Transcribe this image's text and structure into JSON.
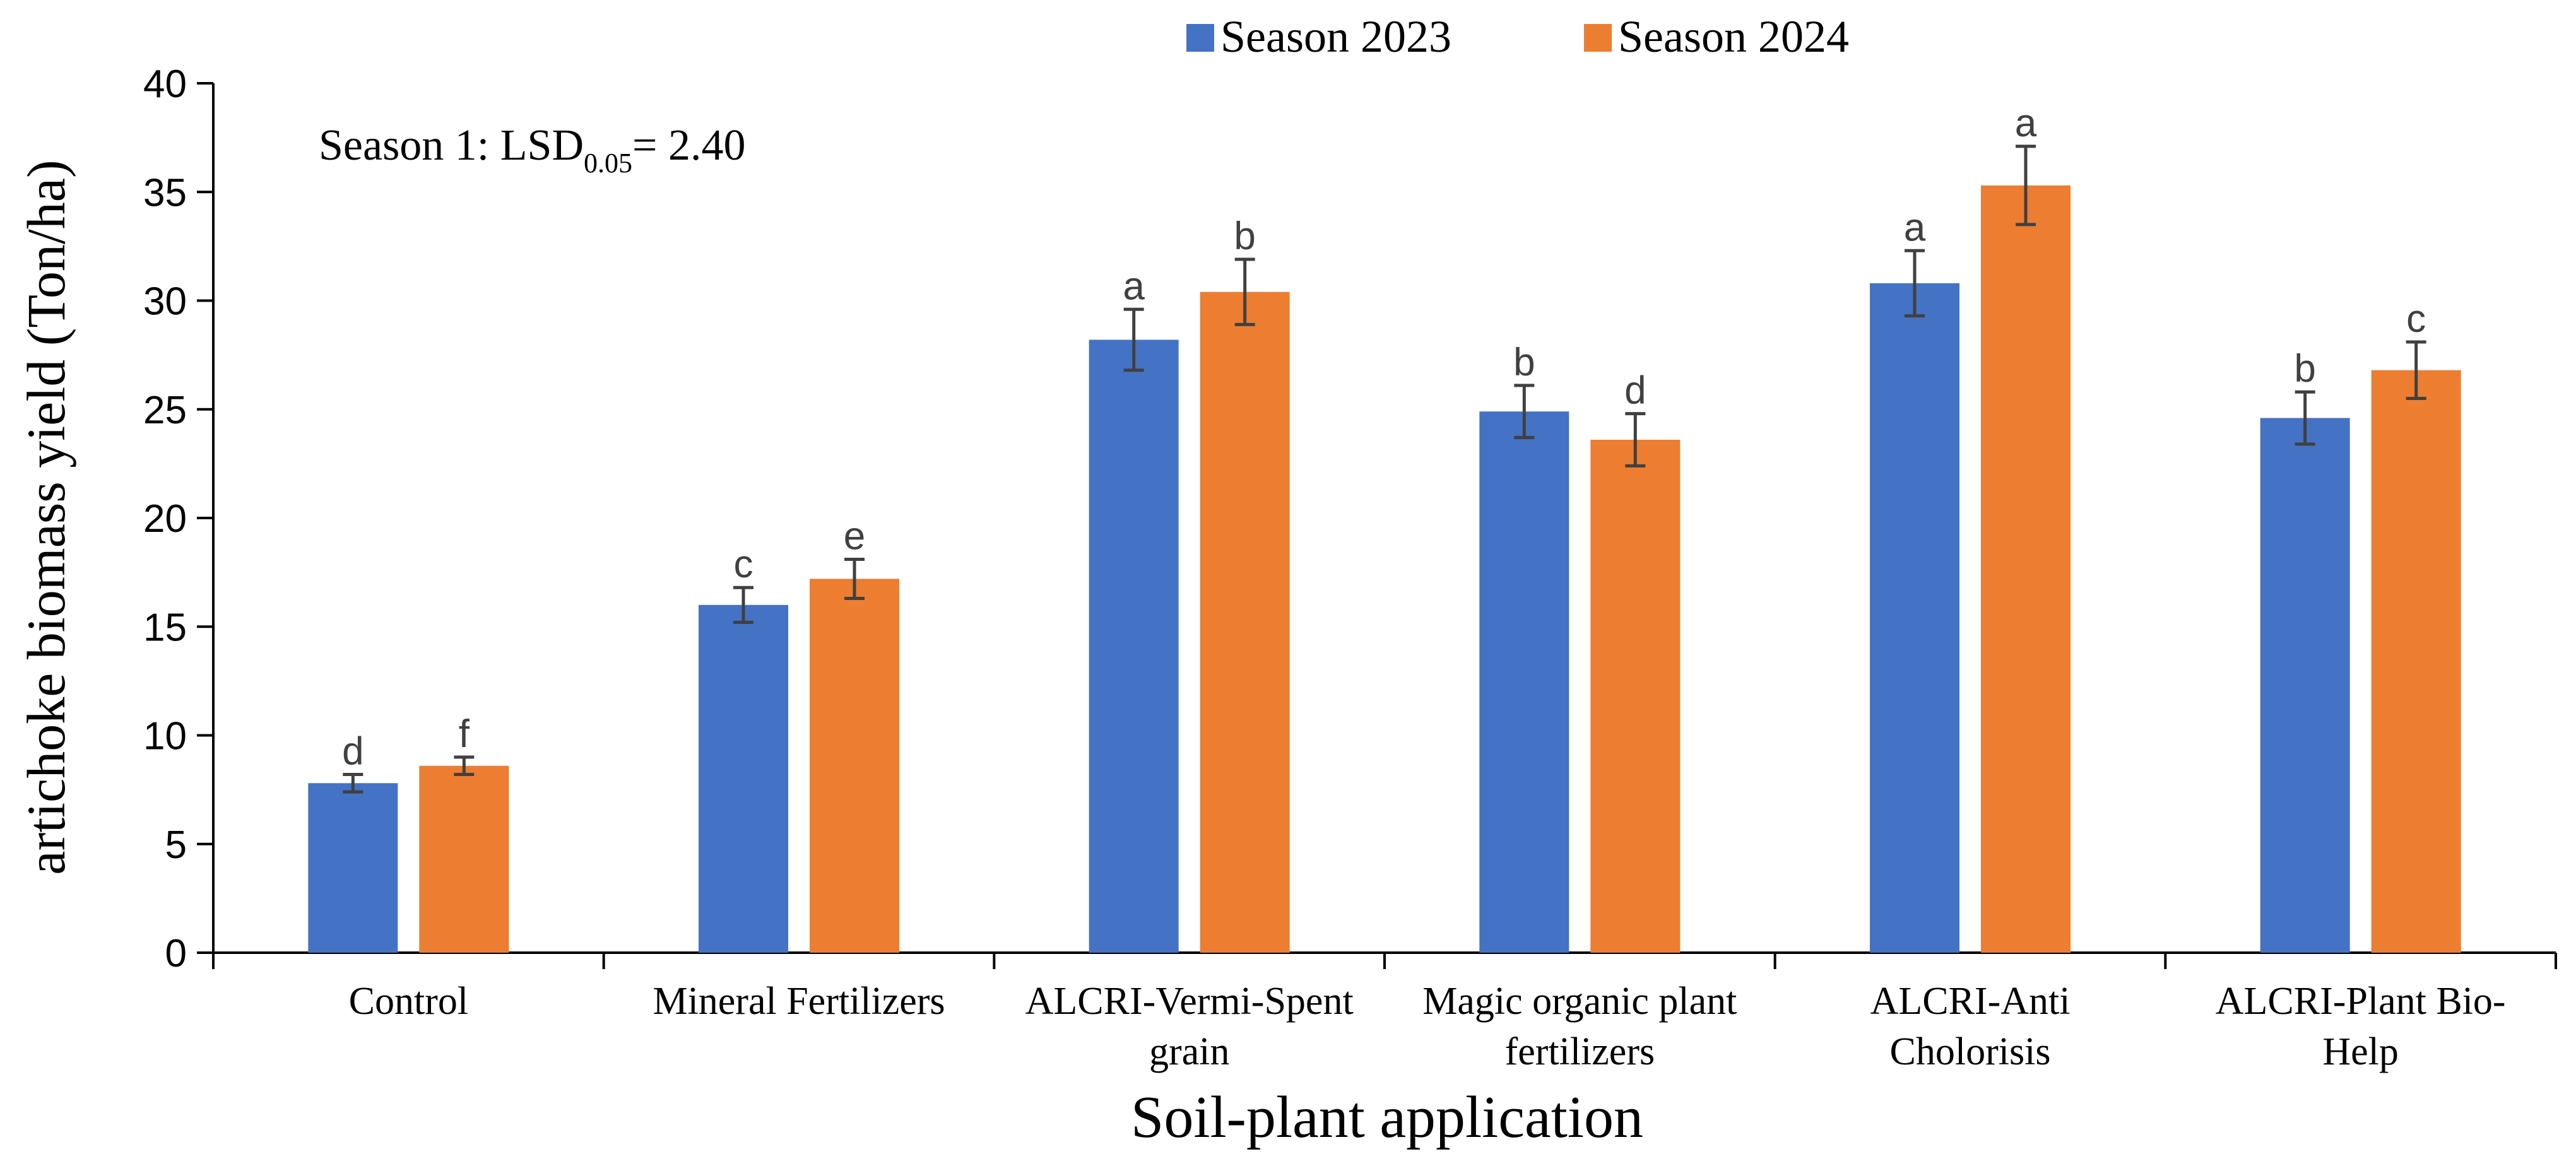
{
  "chart_data": {
    "type": "bar",
    "title": "",
    "xlabel": "Soil-plant application",
    "ylabel": "artichoke biomass yield (Ton/ha)",
    "ylim": [
      0,
      40
    ],
    "yticks": [
      0,
      5,
      10,
      15,
      20,
      25,
      30,
      35,
      40
    ],
    "grid": false,
    "legend_position": "top-center",
    "annotation": {
      "prefix": "Season 1: LSD",
      "subscript": "0.05",
      "suffix": "= 2.40"
    },
    "categories": [
      [
        "Control"
      ],
      [
        "Mineral Fertilizers"
      ],
      [
        "ALCRI-Vermi-Spent",
        "grain"
      ],
      [
        "Magic organic plant",
        "fertilizers"
      ],
      [
        "ALCRI-Anti",
        "Cholorisis"
      ],
      [
        "ALCRI-Plant Bio-",
        "Help"
      ]
    ],
    "series": [
      {
        "name": "Season 2023",
        "color": "#4472C4",
        "values": [
          7.8,
          16.0,
          28.2,
          24.9,
          30.8,
          24.6
        ],
        "errors": [
          0.4,
          0.8,
          1.4,
          1.2,
          1.5,
          1.2
        ],
        "letters": [
          "d",
          "c",
          "a",
          "b",
          "a",
          "b"
        ]
      },
      {
        "name": "Season 2024",
        "color": "#ED7D31",
        "values": [
          8.6,
          17.2,
          30.4,
          23.6,
          35.3,
          26.8
        ],
        "errors": [
          0.4,
          0.9,
          1.5,
          1.2,
          1.8,
          1.3
        ],
        "letters": [
          "f",
          "e",
          "b",
          "d",
          "a",
          "c"
        ]
      }
    ]
  }
}
